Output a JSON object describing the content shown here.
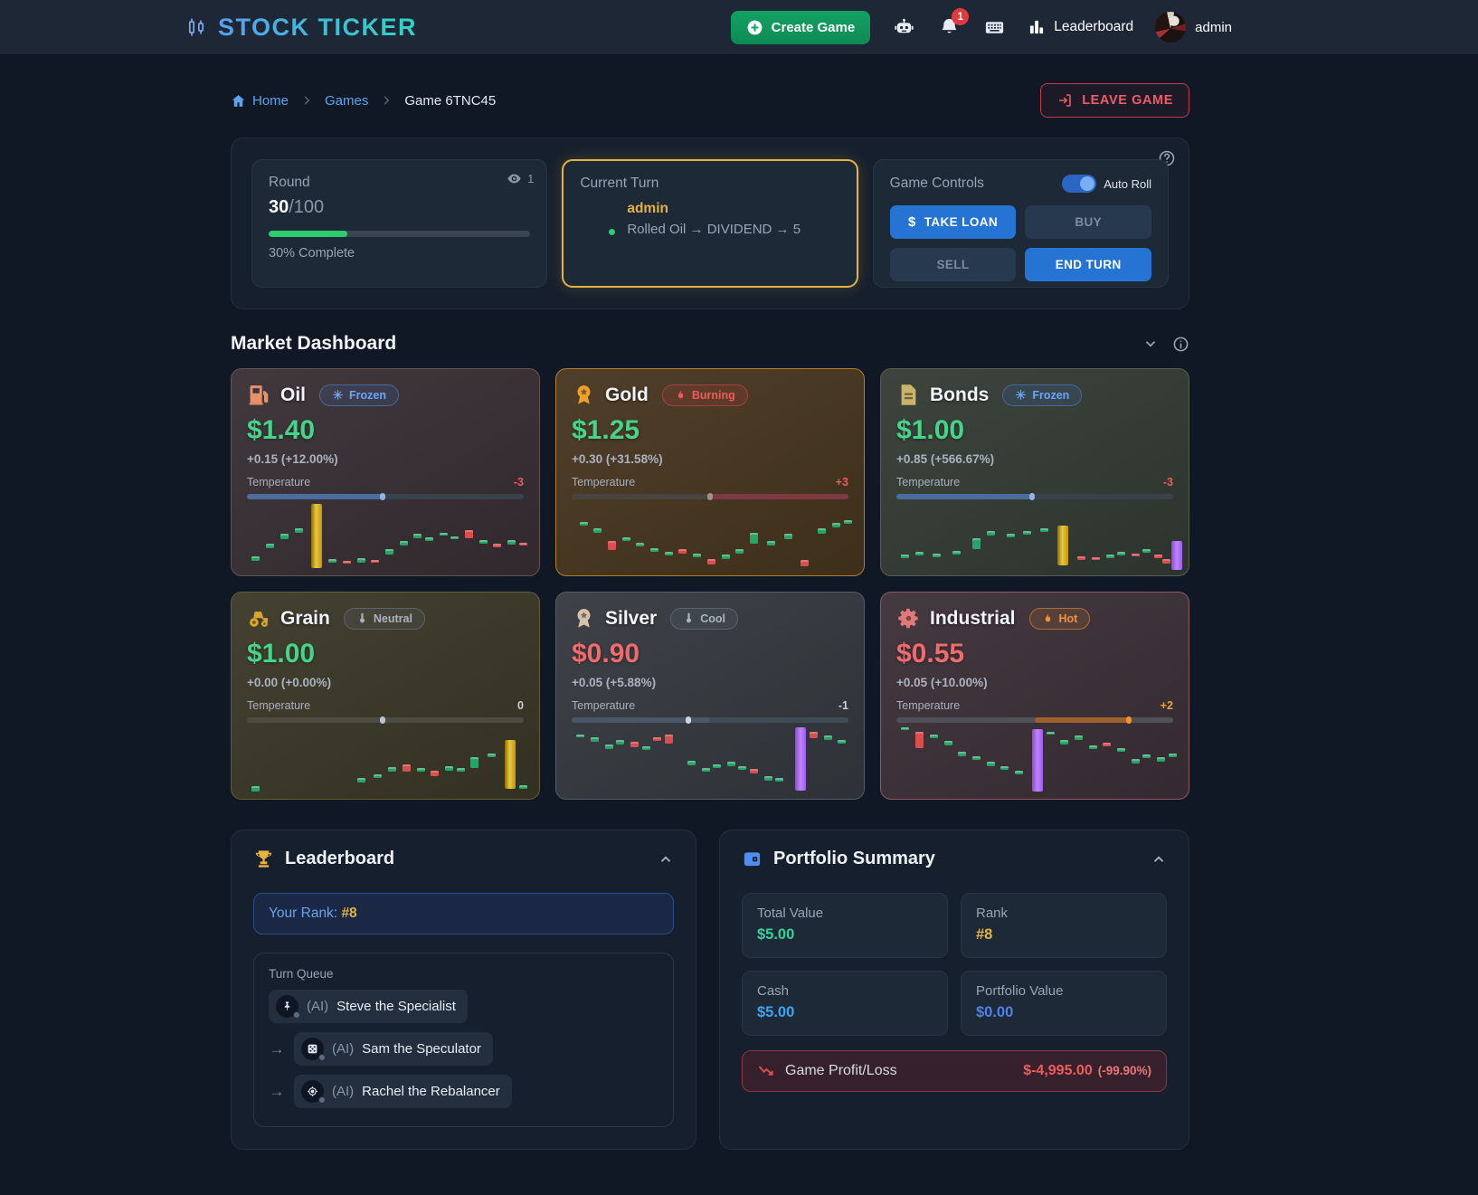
{
  "colors": {
    "accent_green": "#10a35f",
    "accent_blue": "#2574d4",
    "accent_yellow": "#e3b341",
    "price_up": "#45d489",
    "price_down": "#f06b6b",
    "danger": "#ef5b5b"
  },
  "nav": {
    "brand": "STOCK TICKER",
    "brand_icon": "candlestick-icon",
    "create_game": "Create Game",
    "notification_count": "1",
    "leaderboard": "Leaderboard",
    "username": "admin",
    "icons": {
      "assistant": "robot-icon",
      "notifications": "bell-icon",
      "shortcuts": "keyboard-icon",
      "leaderboard": "bar-chart-icon"
    }
  },
  "breadcrumb": {
    "home": "Home",
    "games": "Games",
    "current": "Game 6TNC45",
    "leave_game": "LEAVE GAME"
  },
  "status": {
    "round": {
      "label": "Round",
      "current": "30",
      "total": "/100",
      "percent": 30,
      "complete_text": "30% Complete",
      "spectators": "1"
    },
    "turn": {
      "label": "Current Turn",
      "player": "admin",
      "last_roll": "Rolled Oil → DIVIDEND → 5"
    },
    "controls": {
      "label": "Game Controls",
      "auto_roll": "Auto Roll",
      "auto_roll_on": true,
      "take_loan": "TAKE LOAN",
      "buy": "BUY",
      "sell": "SELL",
      "end_turn": "END TURN"
    }
  },
  "market": {
    "title": "Market Dashboard",
    "temperature_label": "Temperature",
    "cards": [
      {
        "name": "Oil",
        "icon": "fuel-pump-icon",
        "badge": {
          "label": "Frozen",
          "type": "frozen",
          "icon": "snowflake-icon"
        },
        "price": "$1.40",
        "price_color": "#45d489",
        "change": "+0.15 (+12.00%)",
        "temp_value": "-3",
        "temp_color": "#ef5b5b",
        "colors": {
          "bg": "#372e33",
          "border": "#66524e",
          "icon": "#e8926a"
        },
        "bar": {
          "track": "#39414d",
          "fill": [
            0,
            49
          ],
          "fill_color": "#4a6d9e",
          "marker": 49,
          "marker_color": "#90b4e6"
        },
        "candles": [
          [
            3,
            "g",
            80,
            7
          ],
          [
            8,
            "g",
            62,
            7
          ],
          [
            13,
            "g",
            48,
            7
          ],
          [
            18,
            "g",
            40,
            6
          ],
          [
            24,
            "y",
            4,
            94
          ],
          [
            30,
            "g",
            84,
            6
          ],
          [
            35,
            "r",
            87,
            4
          ],
          [
            40,
            "g",
            83,
            6
          ],
          [
            45,
            "r",
            85,
            4
          ],
          [
            50,
            "g",
            70,
            8
          ],
          [
            55,
            "g",
            58,
            7
          ],
          [
            60,
            "g",
            48,
            6
          ],
          [
            64,
            "g",
            53,
            5
          ],
          [
            69,
            "g",
            46,
            4
          ],
          [
            73,
            "g",
            51,
            4
          ],
          [
            78,
            "r",
            42,
            12
          ],
          [
            83,
            "g",
            57,
            5
          ],
          [
            88,
            "r",
            62,
            5
          ],
          [
            93,
            "g",
            56,
            7
          ],
          [
            97,
            "r",
            61,
            4
          ]
        ]
      },
      {
        "name": "Gold",
        "icon": "medal-icon",
        "badge": {
          "label": "Burning",
          "type": "burning",
          "icon": "flame-icon"
        },
        "price": "$1.25",
        "price_color": "#45d489",
        "change": "+0.30 (+31.58%)",
        "temp_value": "+3",
        "temp_color": "#ef5b5b",
        "colors": {
          "bg": "#46351f",
          "border": "#b07f2e",
          "icon": "#f0a02c"
        },
        "bar": {
          "track": "#4a4440",
          "fill": [
            50,
            100
          ],
          "fill_color": "#7e3a40",
          "marker": 50,
          "marker_color": "#9a948c"
        },
        "candles": [
          [
            4,
            "g",
            30,
            6
          ],
          [
            9,
            "g",
            40,
            6
          ],
          [
            14,
            "r",
            58,
            13
          ],
          [
            19,
            "g",
            52,
            6
          ],
          [
            24,
            "g",
            60,
            6
          ],
          [
            29,
            "g",
            68,
            6
          ],
          [
            34,
            "g",
            74,
            5
          ],
          [
            39,
            "r",
            70,
            6
          ],
          [
            44,
            "g",
            76,
            6
          ],
          [
            49,
            "r",
            84,
            8
          ],
          [
            54,
            "g",
            78,
            6
          ],
          [
            59,
            "g",
            70,
            6
          ],
          [
            64,
            "g",
            46,
            16
          ],
          [
            70,
            "g",
            58,
            6
          ],
          [
            76,
            "g",
            48,
            7
          ],
          [
            82,
            "r",
            86,
            9
          ],
          [
            88,
            "g",
            40,
            7
          ],
          [
            93,
            "g",
            32,
            6
          ],
          [
            97,
            "g",
            28,
            5
          ]
        ]
      },
      {
        "name": "Bonds",
        "icon": "document-icon",
        "badge": {
          "label": "Frozen",
          "type": "frozen",
          "icon": "snowflake-icon"
        },
        "price": "$1.00",
        "price_color": "#45d489",
        "change": "+0.85 (+566.67%)",
        "temp_value": "-3",
        "temp_color": "#ef5b5b",
        "colors": {
          "bg": "#333a33",
          "border": "#555f4e",
          "icon": "#c9b469"
        },
        "bar": {
          "track": "#39414d",
          "fill": [
            0,
            49
          ],
          "fill_color": "#4a6d9e",
          "marker": 49,
          "marker_color": "#90b4e6"
        },
        "candles": [
          [
            3,
            "g",
            78,
            5
          ],
          [
            8,
            "g",
            74,
            5
          ],
          [
            14,
            "g",
            76,
            6
          ],
          [
            21,
            "g",
            72,
            5
          ],
          [
            28,
            "g",
            54,
            16
          ],
          [
            33,
            "g",
            44,
            6
          ],
          [
            40,
            "g",
            48,
            5
          ],
          [
            46,
            "g",
            44,
            5
          ],
          [
            52,
            "g",
            40,
            5
          ],
          [
            58,
            "y",
            36,
            58
          ],
          [
            65,
            "r",
            80,
            5
          ],
          [
            70,
            "r",
            82,
            4
          ],
          [
            75,
            "g",
            78,
            5
          ],
          [
            79,
            "g",
            74,
            5
          ],
          [
            84,
            "r",
            76,
            4
          ],
          [
            88,
            "g",
            70,
            5
          ],
          [
            92,
            "r",
            78,
            5
          ],
          [
            95,
            "r",
            84,
            7
          ],
          [
            98,
            "p",
            58,
            42
          ]
        ]
      },
      {
        "name": "Grain",
        "icon": "tractor-icon",
        "badge": {
          "label": "Neutral",
          "type": "neutral",
          "icon": "thermometer-icon"
        },
        "price": "$1.00",
        "price_color": "#45d489",
        "change": "+0.00 (+0.00%)",
        "temp_value": "0",
        "temp_color": "#c9cfd8",
        "colors": {
          "bg": "#3a3727",
          "border": "#635c3a",
          "icon": "#d9a62e"
        },
        "bar": {
          "track": "#4e4b42",
          "fill": null,
          "fill_color": null,
          "marker": 49,
          "marker_color": "#b9c2cf"
        },
        "candles": [
          [
            3,
            "g",
            90,
            7
          ],
          [
            40,
            "g",
            78,
            6
          ],
          [
            46,
            "g",
            72,
            6
          ],
          [
            51,
            "g",
            62,
            6
          ],
          [
            56,
            "r",
            58,
            10
          ],
          [
            61,
            "g",
            63,
            6
          ],
          [
            66,
            "r",
            67,
            8
          ],
          [
            71,
            "g",
            61,
            6
          ],
          [
            75,
            "g",
            63,
            5
          ],
          [
            80,
            "g",
            48,
            15
          ],
          [
            86,
            "g",
            42,
            6
          ],
          [
            92,
            "y",
            22,
            72
          ],
          [
            97,
            "g",
            88,
            6
          ]
        ]
      },
      {
        "name": "Silver",
        "icon": "medal-icon",
        "badge": {
          "label": "Cool",
          "type": "cool",
          "icon": "thermometer-icon"
        },
        "price": "$0.90",
        "price_color": "#f06b6b",
        "change": "+0.05 (+5.88%)",
        "temp_value": "-1",
        "temp_color": "#c9cfd8",
        "colors": {
          "bg": "#34383e",
          "border": "#545d67",
          "icon": "#d9c3a8"
        },
        "bar": {
          "track": "#424a55",
          "fill": [
            0,
            50
          ],
          "fill_color": "#4d5666",
          "marker": 42,
          "marker_color": "#cfd8e3"
        },
        "candles": [
          [
            3,
            "g",
            14,
            5
          ],
          [
            8,
            "g",
            19,
            6
          ],
          [
            13,
            "g",
            29,
            7
          ],
          [
            17,
            "g",
            23,
            6
          ],
          [
            22,
            "r",
            25,
            8
          ],
          [
            26,
            "g",
            31,
            6
          ],
          [
            30,
            "r",
            19,
            5
          ],
          [
            34,
            "r",
            14,
            13
          ],
          [
            42,
            "g",
            52,
            7
          ],
          [
            47,
            "g",
            63,
            6
          ],
          [
            51,
            "g",
            58,
            5
          ],
          [
            56,
            "g",
            54,
            6
          ],
          [
            60,
            "g",
            61,
            5
          ],
          [
            64,
            "r",
            65,
            6
          ],
          [
            69,
            "g",
            75,
            6
          ],
          [
            73,
            "g",
            78,
            5
          ],
          [
            80,
            "p",
            4,
            92
          ],
          [
            85,
            "r",
            10,
            10
          ],
          [
            90,
            "g",
            16,
            6
          ],
          [
            95,
            "g",
            22,
            6
          ]
        ]
      },
      {
        "name": "Industrial",
        "icon": "gear-icon",
        "badge": {
          "label": "Hot",
          "type": "hot",
          "icon": "flame-icon"
        },
        "price": "$0.55",
        "price_color": "#f06b6b",
        "change": "+0.05 (+10.00%)",
        "temp_value": "+2",
        "temp_color": "#f0a13c",
        "colors": {
          "bg": "#3c2f37",
          "border": "#8f5a63",
          "icon": "#e07a7a"
        },
        "bar": {
          "track": "#4e5258",
          "fill": [
            50,
            84
          ],
          "fill_color": "#9d5f2b",
          "marker": 84,
          "marker_color": "#f59424"
        },
        "candles": [
          [
            3,
            "g",
            4,
            4
          ],
          [
            8,
            "r",
            10,
            24
          ],
          [
            13,
            "g",
            14,
            6
          ],
          [
            18,
            "g",
            24,
            6
          ],
          [
            23,
            "g",
            40,
            6
          ],
          [
            28,
            "g",
            46,
            5
          ],
          [
            33,
            "g",
            54,
            6
          ],
          [
            38,
            "g",
            61,
            5
          ],
          [
            43,
            "g",
            67,
            6
          ],
          [
            49,
            "p",
            6,
            92
          ],
          [
            54,
            "g",
            10,
            5
          ],
          [
            59,
            "g",
            22,
            7
          ],
          [
            64,
            "g",
            16,
            6
          ],
          [
            69,
            "g",
            30,
            6
          ],
          [
            74,
            "r",
            26,
            5
          ],
          [
            79,
            "g",
            34,
            6
          ],
          [
            84,
            "g",
            50,
            6
          ],
          [
            88,
            "g",
            44,
            5
          ],
          [
            93,
            "g",
            48,
            6
          ],
          [
            97,
            "g",
            42,
            5
          ]
        ]
      }
    ]
  },
  "leaderboard": {
    "title": "Leaderboard",
    "icon": "trophy-icon",
    "your_rank_label": "Your Rank:",
    "your_rank_value": "#8",
    "queue_label": "Turn Queue",
    "queue": [
      {
        "prefix": "(AI)",
        "name": "Steve the Specialist",
        "icon": "pin-icon"
      },
      {
        "prefix": "(AI)",
        "name": "Sam the Speculator",
        "icon": "dice-icon"
      },
      {
        "prefix": "(AI)",
        "name": "Rachel the Rebalancer",
        "icon": "target-icon"
      }
    ]
  },
  "portfolio": {
    "title": "Portfolio Summary",
    "icon": "wallet-icon",
    "stats": [
      {
        "label": "Total Value",
        "value": "$5.00",
        "color": "#34d399"
      },
      {
        "label": "Rank",
        "value": "#8",
        "color": "#e3b341"
      },
      {
        "label": "Cash",
        "value": "$5.00",
        "color": "#3aa5f0"
      },
      {
        "label": "Portfolio Value",
        "value": "$0.00",
        "color": "#4f82e8"
      }
    ],
    "pnl": {
      "label": "Game Profit/Loss",
      "value": "$-4,995.00",
      "pct": "(-99.90%)"
    }
  }
}
